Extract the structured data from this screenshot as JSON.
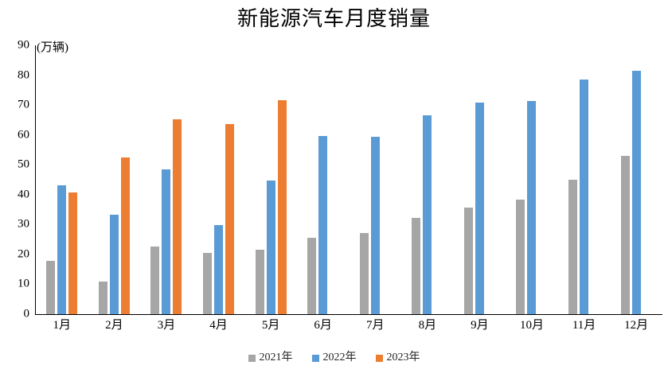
{
  "title": "新能源汽车月度销量",
  "y_axis_unit_label": "(万辆)",
  "chart_data": {
    "type": "bar",
    "title": "新能源汽车月度销量",
    "unit_label": "(万辆)",
    "xlabel": "",
    "ylabel": "万辆",
    "ylim": [
      0,
      90
    ],
    "y_ticks": [
      0,
      10,
      20,
      30,
      40,
      50,
      60,
      70,
      80,
      90
    ],
    "grid": false,
    "legend_position": "bottom",
    "categories": [
      "1月",
      "2月",
      "3月",
      "4月",
      "5月",
      "6月",
      "7月",
      "8月",
      "9月",
      "10月",
      "11月",
      "12月"
    ],
    "series": [
      {
        "name": "2021年",
        "color": "#A6A6A6",
        "values": [
          17.9,
          11.0,
          22.6,
          20.6,
          21.7,
          25.6,
          27.1,
          32.1,
          35.7,
          38.3,
          45.0,
          53.1
        ]
      },
      {
        "name": "2022年",
        "color": "#5B9BD5",
        "values": [
          43.1,
          33.4,
          48.4,
          29.9,
          44.7,
          59.6,
          59.3,
          66.6,
          70.8,
          71.4,
          78.6,
          81.4
        ]
      },
      {
        "name": "2023年",
        "color": "#ED7D31",
        "values": [
          40.8,
          52.5,
          65.3,
          63.6,
          71.7,
          null,
          null,
          null,
          null,
          null,
          null,
          null
        ]
      }
    ]
  }
}
